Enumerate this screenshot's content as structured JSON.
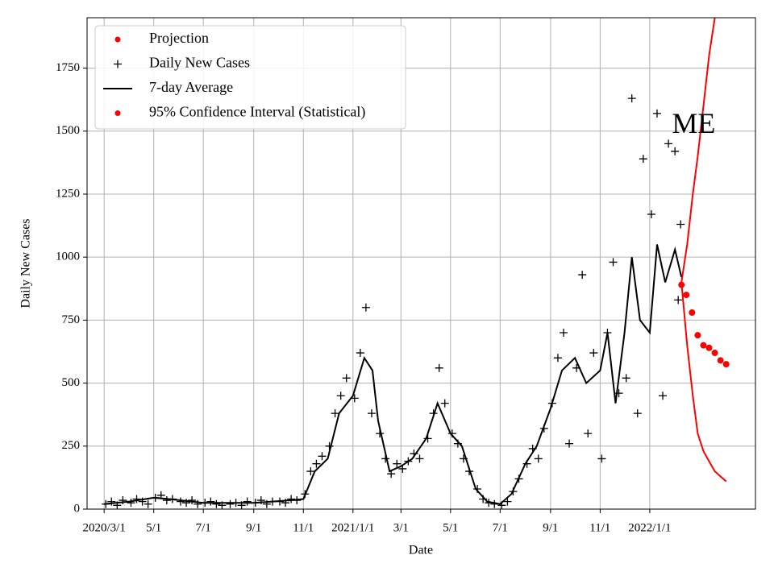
{
  "chart_data": {
    "type": "line",
    "xlabel": "Date",
    "ylabel": "Daily New Cases",
    "annotation": {
      "text": "ME",
      "x": "2022-02-24",
      "y": 1520
    },
    "xlim": [
      "2020-02-09",
      "2022-05-11"
    ],
    "xticks": [
      {
        "value": "2020-03-01",
        "label": "2020/3/1"
      },
      {
        "value": "2020-05-01",
        "label": "5/1"
      },
      {
        "value": "2020-07-01",
        "label": "7/1"
      },
      {
        "value": "2020-09-01",
        "label": "9/1"
      },
      {
        "value": "2020-11-01",
        "label": "11/1"
      },
      {
        "value": "2021-01-01",
        "label": "2021/1/1"
      },
      {
        "value": "2021-03-01",
        "label": "3/1"
      },
      {
        "value": "2021-05-01",
        "label": "5/1"
      },
      {
        "value": "2021-07-01",
        "label": "7/1"
      },
      {
        "value": "2021-09-01",
        "label": "9/1"
      },
      {
        "value": "2021-11-01",
        "label": "11/1"
      },
      {
        "value": "2022-01-01",
        "label": "2022/1/1"
      }
    ],
    "ylim": [
      0,
      1950
    ],
    "yticks": [
      0,
      250,
      500,
      750,
      1000,
      1250,
      1500,
      1750
    ],
    "grid": true,
    "legend": "upper left",
    "series": [
      {
        "name": "Projection",
        "color": "#ff0000",
        "marker": "dot",
        "x": [
          "2022-02-09",
          "2022-02-15",
          "2022-02-22",
          "2022-03-01",
          "2022-03-08",
          "2022-03-15",
          "2022-03-22",
          "2022-03-29",
          "2022-04-05"
        ],
        "values": [
          890,
          850,
          780,
          690,
          650,
          640,
          620,
          590,
          575
        ]
      },
      {
        "name": "Daily New Cases",
        "color": "#000000",
        "marker": "plus",
        "x": [
          "2020-03-03",
          "2020-03-10",
          "2020-03-17",
          "2020-03-24",
          "2020-04-03",
          "2020-04-10",
          "2020-04-17",
          "2020-04-24",
          "2020-05-03",
          "2020-05-10",
          "2020-05-17",
          "2020-05-24",
          "2020-06-03",
          "2020-06-10",
          "2020-06-17",
          "2020-06-24",
          "2020-07-03",
          "2020-07-10",
          "2020-07-17",
          "2020-07-24",
          "2020-08-03",
          "2020-08-10",
          "2020-08-17",
          "2020-08-24",
          "2020-09-03",
          "2020-09-10",
          "2020-09-17",
          "2020-09-24",
          "2020-10-03",
          "2020-10-10",
          "2020-10-17",
          "2020-10-24",
          "2020-11-03",
          "2020-11-10",
          "2020-11-17",
          "2020-11-24",
          "2020-12-03",
          "2020-12-10",
          "2020-12-17",
          "2020-12-24",
          "2021-01-03",
          "2021-01-10",
          "2021-01-17",
          "2021-01-24",
          "2021-02-03",
          "2021-02-10",
          "2021-02-17",
          "2021-02-24",
          "2021-03-03",
          "2021-03-10",
          "2021-03-17",
          "2021-03-24",
          "2021-04-03",
          "2021-04-10",
          "2021-04-17",
          "2021-04-24",
          "2021-05-03",
          "2021-05-10",
          "2021-05-17",
          "2021-05-24",
          "2021-06-03",
          "2021-06-10",
          "2021-06-17",
          "2021-06-24",
          "2021-07-03",
          "2021-07-10",
          "2021-07-17",
          "2021-07-24",
          "2021-08-03",
          "2021-08-10",
          "2021-08-17",
          "2021-08-24",
          "2021-09-03",
          "2021-09-10",
          "2021-09-17",
          "2021-09-24",
          "2021-10-03",
          "2021-10-10",
          "2021-10-17",
          "2021-10-24",
          "2021-11-03",
          "2021-11-10",
          "2021-11-17",
          "2021-11-24",
          "2021-12-03",
          "2021-12-10",
          "2021-12-17",
          "2021-12-24",
          "2022-01-03",
          "2022-01-10",
          "2022-01-17",
          "2022-01-24",
          "2022-02-01",
          "2022-02-05",
          "2022-02-08"
        ],
        "values": [
          20,
          30,
          15,
          35,
          25,
          40,
          30,
          20,
          45,
          55,
          35,
          40,
          30,
          25,
          35,
          20,
          25,
          30,
          20,
          15,
          20,
          25,
          15,
          30,
          25,
          35,
          20,
          30,
          30,
          25,
          40,
          35,
          60,
          150,
          180,
          210,
          250,
          380,
          450,
          520,
          440,
          620,
          800,
          380,
          300,
          200,
          140,
          180,
          160,
          190,
          220,
          200,
          280,
          380,
          560,
          420,
          300,
          260,
          200,
          150,
          80,
          40,
          25,
          20,
          15,
          30,
          70,
          120,
          180,
          240,
          200,
          320,
          420,
          600,
          700,
          260,
          560,
          930,
          300,
          620,
          200,
          700,
          980,
          460,
          520,
          1630,
          380,
          1390,
          1170,
          1570,
          450,
          1450,
          1420,
          830,
          1130
        ]
      },
      {
        "name": "7-day Average",
        "color": "#000000",
        "marker": "line",
        "x": [
          "2020-03-01",
          "2020-04-01",
          "2020-05-01",
          "2020-05-20",
          "2020-07-01",
          "2020-09-01",
          "2020-10-15",
          "2020-11-01",
          "2020-11-15",
          "2020-12-01",
          "2020-12-15",
          "2021-01-01",
          "2021-01-15",
          "2021-01-25",
          "2021-02-01",
          "2021-02-15",
          "2021-03-01",
          "2021-03-15",
          "2021-04-01",
          "2021-04-15",
          "2021-05-01",
          "2021-05-15",
          "2021-06-01",
          "2021-06-15",
          "2021-07-01",
          "2021-07-15",
          "2021-08-01",
          "2021-08-15",
          "2021-09-01",
          "2021-09-15",
          "2021-10-01",
          "2021-10-15",
          "2021-11-01",
          "2021-11-10",
          "2021-11-20",
          "2021-12-01",
          "2021-12-10",
          "2021-12-20",
          "2022-01-01",
          "2022-01-10",
          "2022-01-20",
          "2022-02-01",
          "2022-02-09"
        ],
        "values": [
          20,
          30,
          45,
          40,
          25,
          25,
          35,
          40,
          150,
          200,
          380,
          450,
          600,
          550,
          350,
          150,
          170,
          200,
          280,
          420,
          300,
          250,
          80,
          30,
          20,
          60,
          180,
          250,
          400,
          550,
          600,
          500,
          550,
          700,
          420,
          700,
          1000,
          750,
          700,
          1050,
          900,
          1030,
          920
        ]
      },
      {
        "name": "95% Confidence Interval (Statistical)",
        "color": "#ff0000",
        "marker": "dot",
        "x": [
          "2022-02-09",
          "2022-02-16",
          "2022-02-23",
          "2022-03-01",
          "2022-03-08",
          "2022-03-15",
          "2022-03-22",
          "2022-04-05"
        ],
        "upper": [
          900,
          1050,
          1250,
          1400,
          1600,
          1800,
          1950,
          null
        ],
        "lower": [
          900,
          650,
          450,
          300,
          230,
          190,
          150,
          110
        ]
      }
    ]
  }
}
